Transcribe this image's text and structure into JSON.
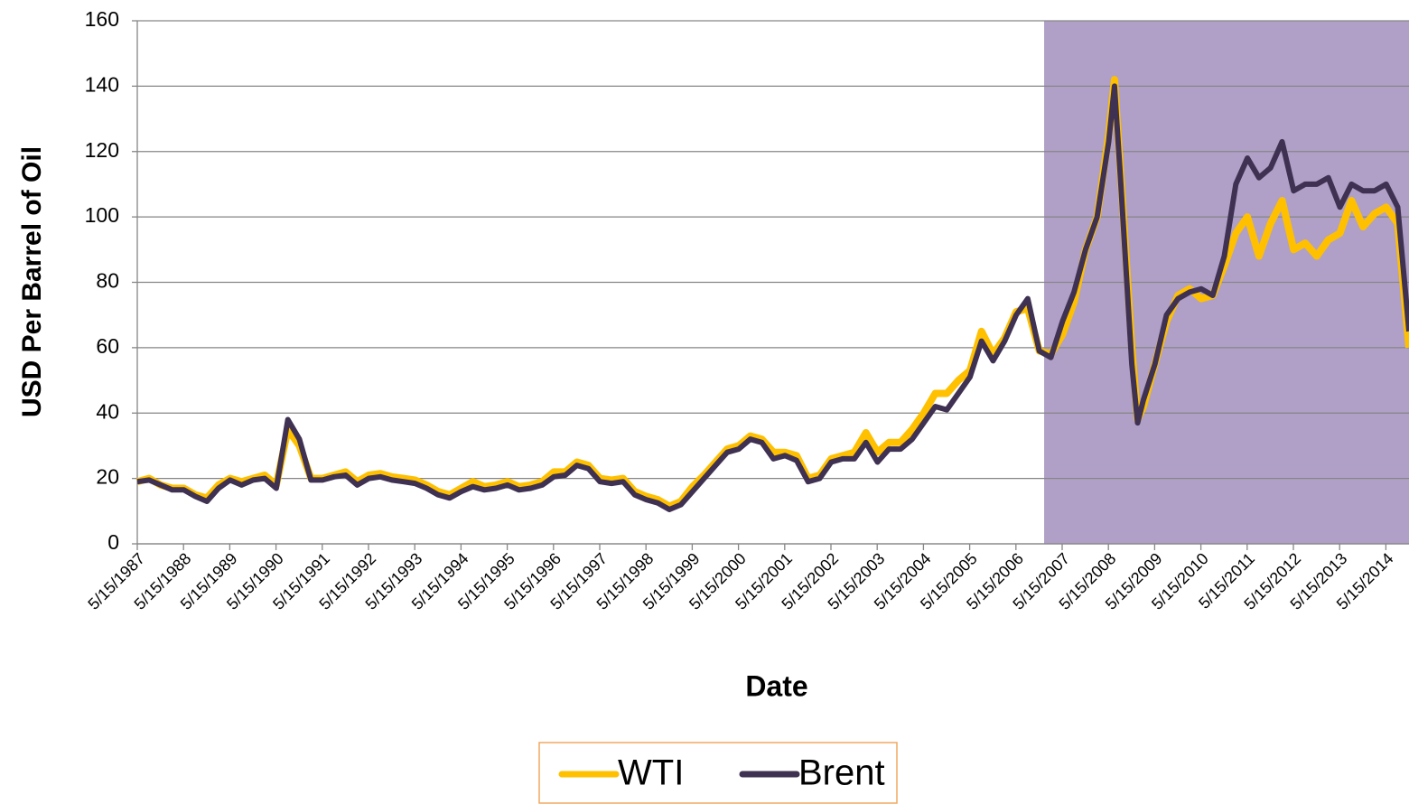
{
  "chart_data": {
    "type": "line",
    "y_label": "USD Per Barrel of Oil",
    "x_label": "Date",
    "x": [
      1987.37,
      1987.625,
      1987.875,
      1988.125,
      1988.375,
      1988.625,
      1988.875,
      1989.125,
      1989.375,
      1989.625,
      1989.875,
      1990.125,
      1990.375,
      1990.625,
      1990.875,
      1991.125,
      1991.375,
      1991.625,
      1991.875,
      1992.125,
      1992.375,
      1992.625,
      1992.875,
      1993.125,
      1993.375,
      1993.625,
      1993.875,
      1994.125,
      1994.375,
      1994.625,
      1994.875,
      1995.125,
      1995.375,
      1995.625,
      1995.875,
      1996.125,
      1996.375,
      1996.625,
      1996.875,
      1997.125,
      1997.375,
      1997.625,
      1997.875,
      1998.125,
      1998.375,
      1998.625,
      1998.875,
      1999.125,
      1999.375,
      1999.625,
      1999.875,
      2000.125,
      2000.375,
      2000.625,
      2000.875,
      2001.125,
      2001.375,
      2001.625,
      2001.875,
      2002.125,
      2002.375,
      2002.625,
      2002.875,
      2003.125,
      2003.375,
      2003.625,
      2003.875,
      2004.125,
      2004.375,
      2004.625,
      2004.875,
      2005.125,
      2005.375,
      2005.625,
      2005.875,
      2006.125,
      2006.375,
      2006.625,
      2006.875,
      2007.125,
      2007.375,
      2007.625,
      2007.875,
      2008.125,
      2008.375,
      2008.5,
      2008.625,
      2008.875,
      2009,
      2009.125,
      2009.375,
      2009.625,
      2009.875,
      2010.125,
      2010.375,
      2010.625,
      2010.875,
      2011.125,
      2011.375,
      2011.625,
      2011.875,
      2012.125,
      2012.375,
      2012.625,
      2012.875,
      2013.125,
      2013.375,
      2013.625,
      2013.875,
      2014.125,
      2014.375,
      2014.625,
      2014.87
    ],
    "series": [
      {
        "name": "WTI",
        "color": "#ffc000",
        "values": [
          19,
          20,
          18,
          17,
          17,
          15,
          14,
          18,
          20,
          19,
          20,
          21,
          18,
          35,
          30,
          20,
          20,
          21,
          22,
          19,
          21,
          21.5,
          20.5,
          20,
          19.5,
          18,
          16,
          15,
          17,
          19,
          17.5,
          18,
          19,
          17.5,
          18,
          19,
          22,
          22,
          25,
          24,
          20,
          19.5,
          20,
          16,
          14.5,
          13.5,
          11.5,
          13,
          17.5,
          21,
          25,
          29,
          30,
          33,
          32,
          28,
          28,
          27,
          20,
          21,
          26,
          27,
          28,
          34,
          28,
          31,
          31,
          35,
          40,
          46,
          46,
          50,
          53,
          65,
          58,
          63,
          71,
          72,
          59,
          58,
          64,
          74,
          90,
          100,
          125,
          142,
          115,
          60,
          38,
          42,
          55,
          68,
          76,
          78,
          75,
          76,
          85,
          95,
          100,
          88,
          98,
          105,
          90,
          92,
          88,
          93,
          95,
          105,
          97,
          101,
          103,
          98,
          60
        ]
      },
      {
        "name": "Brent",
        "color": "#3f3151",
        "values": [
          19,
          19.5,
          18,
          16.5,
          16.5,
          14.5,
          13,
          17,
          19.5,
          18,
          19.5,
          20,
          17,
          38,
          32,
          19.5,
          19.5,
          20.5,
          21,
          18,
          20,
          20.5,
          19.5,
          19,
          18.5,
          17,
          15,
          14,
          16,
          17.5,
          16.5,
          17,
          18,
          16.5,
          17,
          18,
          20.5,
          21,
          24,
          23,
          19,
          18.5,
          19,
          15,
          13.5,
          12.5,
          10.5,
          12,
          16,
          20,
          24,
          28,
          29,
          32,
          31,
          26,
          27,
          25.5,
          19,
          20,
          25,
          26,
          26,
          31,
          25,
          29,
          29,
          32,
          37,
          42,
          41,
          46,
          51,
          62,
          56,
          62,
          70,
          75,
          59,
          57,
          68,
          77,
          90,
          100,
          123,
          140,
          113,
          55,
          37,
          44,
          55,
          70,
          75,
          77,
          78,
          76,
          88,
          110,
          118,
          112,
          115,
          123,
          108,
          110,
          110,
          112,
          103,
          110,
          108,
          108,
          110,
          103,
          65
        ]
      }
    ],
    "xlim": [
      1987.37,
      2014.87
    ],
    "xticks": [
      {
        "value": 1987.37,
        "label": "5/15/1987"
      },
      {
        "value": 1988.37,
        "label": "5/15/1988"
      },
      {
        "value": 1989.37,
        "label": "5/15/1989"
      },
      {
        "value": 1990.37,
        "label": "5/15/1990"
      },
      {
        "value": 1991.37,
        "label": "5/15/1991"
      },
      {
        "value": 1992.37,
        "label": "5/15/1992"
      },
      {
        "value": 1993.37,
        "label": "5/15/1993"
      },
      {
        "value": 1994.37,
        "label": "5/15/1994"
      },
      {
        "value": 1995.37,
        "label": "5/15/1995"
      },
      {
        "value": 1996.37,
        "label": "5/15/1996"
      },
      {
        "value": 1997.37,
        "label": "5/15/1997"
      },
      {
        "value": 1998.37,
        "label": "5/15/1998"
      },
      {
        "value": 1999.37,
        "label": "5/15/1999"
      },
      {
        "value": 2000.37,
        "label": "5/15/2000"
      },
      {
        "value": 2001.37,
        "label": "5/15/2001"
      },
      {
        "value": 2002.37,
        "label": "5/15/2002"
      },
      {
        "value": 2003.37,
        "label": "5/15/2003"
      },
      {
        "value": 2004.37,
        "label": "5/15/2004"
      },
      {
        "value": 2005.37,
        "label": "5/15/2005"
      },
      {
        "value": 2006.37,
        "label": "5/15/2006"
      },
      {
        "value": 2007.37,
        "label": "5/15/2007"
      },
      {
        "value": 2008.37,
        "label": "5/15/2008"
      },
      {
        "value": 2009.37,
        "label": "5/15/2009"
      },
      {
        "value": 2010.37,
        "label": "5/15/2010"
      },
      {
        "value": 2011.37,
        "label": "5/15/2011"
      },
      {
        "value": 2012.37,
        "label": "5/15/2012"
      },
      {
        "value": 2013.37,
        "label": "5/15/2013"
      },
      {
        "value": 2014.37,
        "label": "5/15/2014"
      }
    ],
    "ylim": [
      0,
      160
    ],
    "yticks": [
      0,
      20,
      40,
      60,
      80,
      100,
      120,
      140,
      160
    ],
    "grid": true,
    "highlight": {
      "xlim": [
        2006.98,
        2014.87
      ],
      "color": "#b0a0c8"
    },
    "legend": "bottom"
  }
}
